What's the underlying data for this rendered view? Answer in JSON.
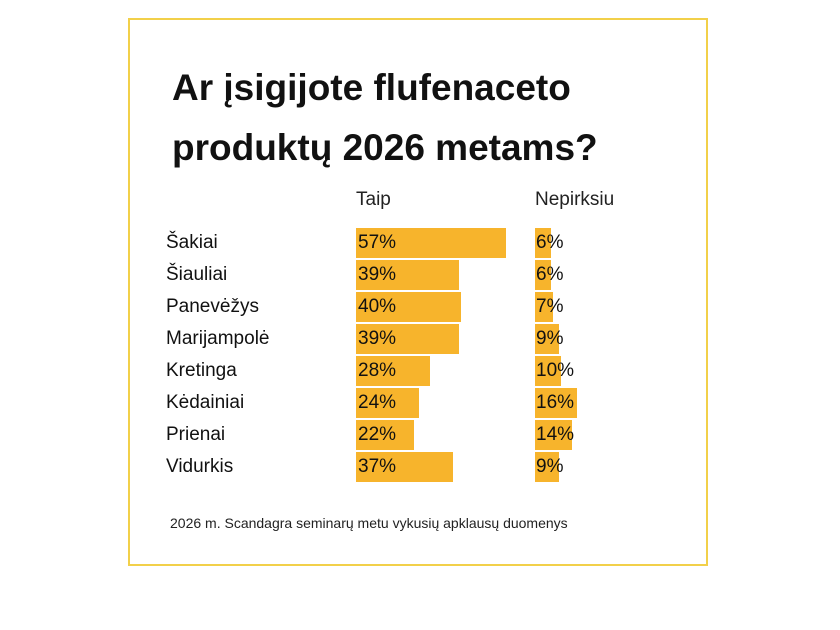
{
  "chart_data": {
    "type": "bar",
    "title": "Ar įsigijote flufenaceto produktų 2026 metams?",
    "categories": [
      "Šakiai",
      "Šiauliai",
      "Panevėžys",
      "Marijampolė",
      "Kretinga",
      "Kėdainiai",
      "Prienai",
      "Vidurkis"
    ],
    "series": [
      {
        "name": "Taip",
        "values": [
          57,
          39,
          40,
          39,
          28,
          24,
          22,
          37
        ],
        "labels": [
          "57%",
          "39%",
          "40%",
          "39%",
          "28%",
          "24%",
          "22%",
          "37%"
        ],
        "color": "#f7b42c"
      },
      {
        "name": "Nepirksiu",
        "values": [
          6,
          6,
          7,
          9,
          10,
          16,
          14,
          9
        ],
        "labels": [
          "6%",
          "6%",
          "7%",
          "9%",
          "10%",
          "16%",
          "14%",
          "9%"
        ],
        "color": "#f7b42c"
      }
    ],
    "unit": "%",
    "ylim": [
      0,
      100
    ],
    "grid": false,
    "legend": "column headers above bars",
    "footnote": "2026 m. Scandagra seminarų metu vykusių apklausų duomenys",
    "border_color": "#f2d04a"
  }
}
